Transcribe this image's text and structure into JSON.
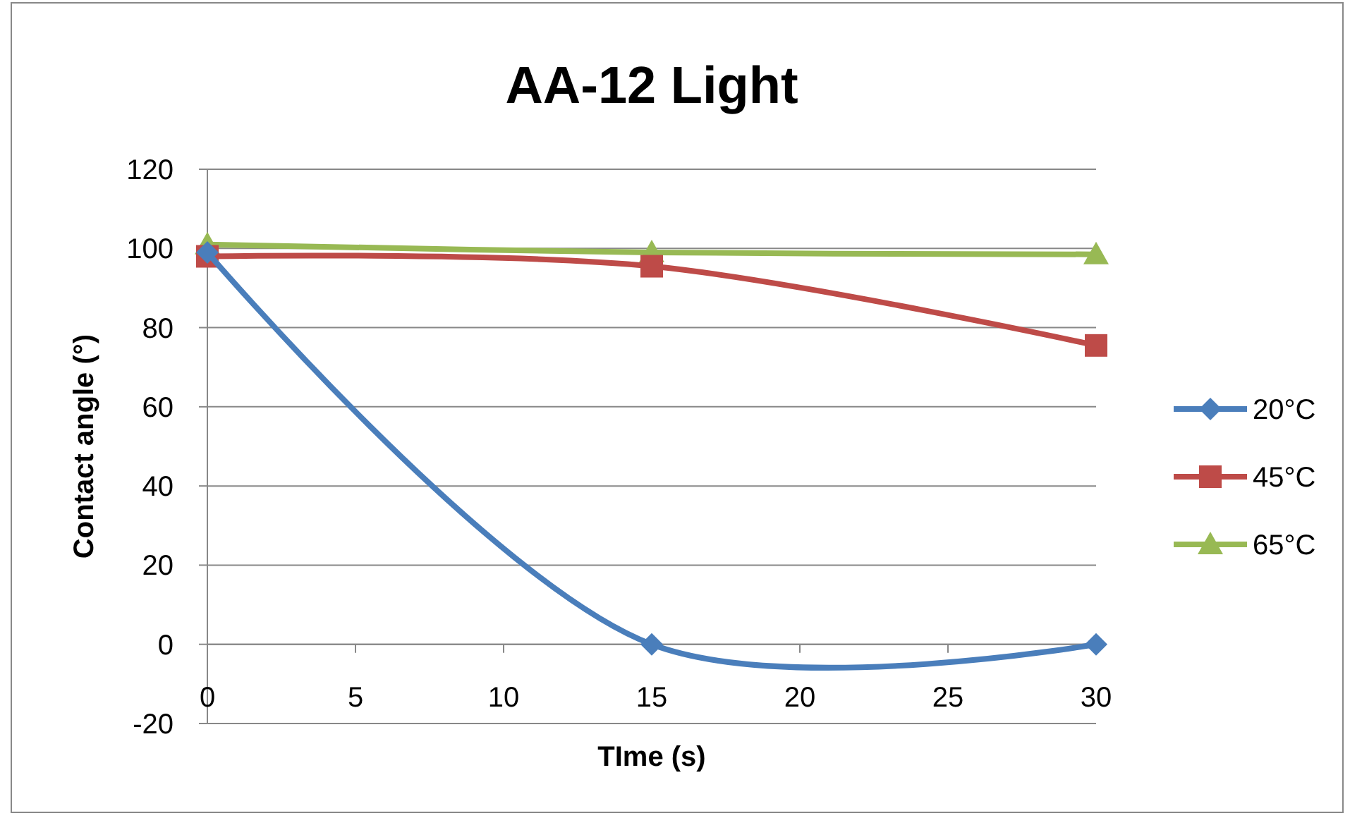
{
  "chart_data": {
    "type": "line",
    "title": "AA-12 Light",
    "xlabel": "TIme (s)",
    "ylabel": "Contact angle (°)",
    "x": [
      0,
      15,
      30
    ],
    "series": [
      {
        "name": "20°C",
        "color": "#4a7ebb",
        "values": [
          99,
          0,
          0
        ],
        "marker": "diamond"
      },
      {
        "name": "45°C",
        "color": "#be4b48",
        "values": [
          98,
          95.5,
          75.5
        ],
        "marker": "square"
      },
      {
        "name": "65°C",
        "color": "#98b954",
        "values": [
          101,
          99,
          98.5
        ],
        "marker": "triangle"
      }
    ],
    "xlim": [
      0,
      30
    ],
    "xticks": [
      0,
      5,
      10,
      15,
      20,
      25,
      30
    ],
    "ylim": [
      -20,
      120
    ],
    "yticks": [
      -20,
      0,
      20,
      40,
      60,
      80,
      100,
      120
    ],
    "grid": "y",
    "legend": "right"
  }
}
